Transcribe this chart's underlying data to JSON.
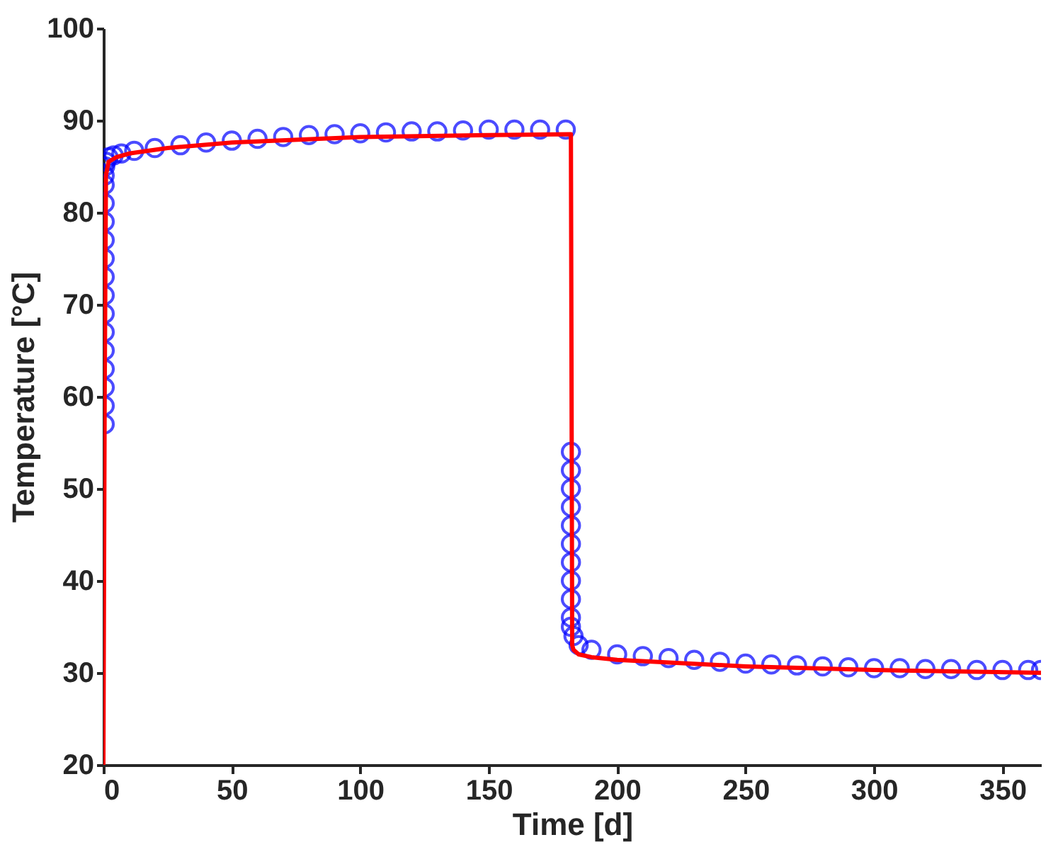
{
  "chart_data": {
    "type": "line",
    "xlabel": "Time [d]",
    "ylabel": "Temperature [°C]",
    "xlim": [
      0,
      365
    ],
    "ylim": [
      20,
      100
    ],
    "xticks": [
      0,
      50,
      100,
      150,
      200,
      250,
      300,
      350
    ],
    "yticks": [
      20,
      30,
      40,
      50,
      60,
      70,
      80,
      90,
      100
    ],
    "grid": false,
    "series": [
      {
        "type": "scatter",
        "color": "#0000ff",
        "marker": "circle",
        "x": [
          0.5,
          0.5,
          0.5,
          0.5,
          0.5,
          0.5,
          0.5,
          0.5,
          0.5,
          0.5,
          0.5,
          0.5,
          0.5,
          0.5,
          0.5,
          0.7,
          1,
          2,
          4,
          7,
          12,
          20,
          30,
          40,
          50,
          60,
          70,
          80,
          90,
          100,
          110,
          120,
          130,
          140,
          150,
          160,
          170,
          180,
          182,
          182,
          182,
          182,
          182,
          182,
          182,
          182,
          182,
          182,
          182,
          183,
          185,
          190,
          200,
          210,
          220,
          230,
          240,
          250,
          260,
          270,
          280,
          290,
          300,
          310,
          320,
          330,
          340,
          350,
          360,
          365
        ],
        "values": [
          57,
          59,
          61,
          63,
          65,
          67,
          69,
          71,
          73,
          75,
          77,
          79,
          81,
          83,
          84,
          85,
          85.5,
          86,
          86.2,
          86.4,
          86.7,
          87,
          87.3,
          87.6,
          87.8,
          88,
          88.2,
          88.4,
          88.5,
          88.6,
          88.7,
          88.8,
          88.8,
          88.9,
          89,
          89,
          89,
          89,
          54,
          52,
          50,
          48,
          46,
          44,
          42,
          40,
          38,
          36,
          35,
          34,
          33,
          32.5,
          32,
          31.8,
          31.6,
          31.4,
          31.2,
          31,
          30.9,
          30.8,
          30.7,
          30.6,
          30.5,
          30.5,
          30.4,
          30.4,
          30.3,
          30.3,
          30.3,
          30.3
        ]
      },
      {
        "color": "#ff0000",
        "line_style": "solid",
        "marker": "none",
        "x": [
          0,
          0.5,
          1,
          2,
          5,
          10,
          25,
          50,
          100,
          150,
          182,
          182.5,
          183,
          185,
          190,
          200,
          250,
          300,
          365
        ],
        "values": [
          20,
          60,
          84,
          85.5,
          86,
          86.4,
          87,
          87.6,
          88.2,
          88.4,
          88.5,
          33,
          32.5,
          32,
          31.7,
          31.4,
          30.7,
          30.3,
          30
        ]
      }
    ]
  }
}
